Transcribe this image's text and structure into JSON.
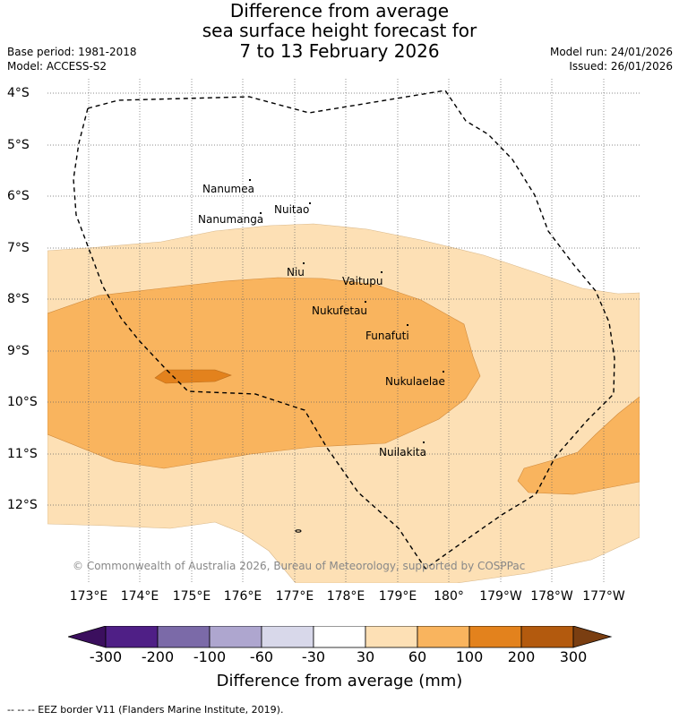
{
  "title": {
    "line1": "Difference from average",
    "line2": "sea surface height forecast for",
    "line3": "7 to 13 February 2026"
  },
  "meta": {
    "base_period": "Base period: 1981-2018",
    "model": "Model: ACCESS-S2",
    "model_run": "Model run: 24/01/2026",
    "issued": "Issued: 26/01/2026"
  },
  "lat_labels": [
    "4°S",
    "5°S",
    "6°S",
    "7°S",
    "8°S",
    "9°S",
    "10°S",
    "11°S",
    "12°S"
  ],
  "lon_labels": [
    "173°E",
    "174°E",
    "175°E",
    "176°E",
    "177°E",
    "178°E",
    "179°E",
    "180°",
    "179°W",
    "178°W",
    "177°W"
  ],
  "islands": [
    "Nanumea",
    "Nuitao",
    "Nanumanga",
    "Niu",
    "Vaitupu",
    "Nukufetau",
    "Funafuti",
    "Nukulaelae",
    "Nuilakita"
  ],
  "copyright": "© Commonwealth of Australia 2026, Bureau of Meteorology, supported by COSPPac",
  "colorbar": {
    "ticks": [
      "-300",
      "-200",
      "-100",
      "-60",
      "-30",
      "30",
      "60",
      "100",
      "200",
      "300"
    ],
    "colors": [
      "#3b0f5e",
      "#4f1f86",
      "#7b6aa8",
      "#aea6cf",
      "#d8d8ea",
      "#ffffff",
      "#fde0b5",
      "#f9b45e",
      "#e3821d",
      "#b35a0e",
      "#7a3e11"
    ],
    "title": "Difference from average (mm)"
  },
  "footer": "--  --  -- EEZ border V11 (Flanders Marine Institute, 2019)."
}
